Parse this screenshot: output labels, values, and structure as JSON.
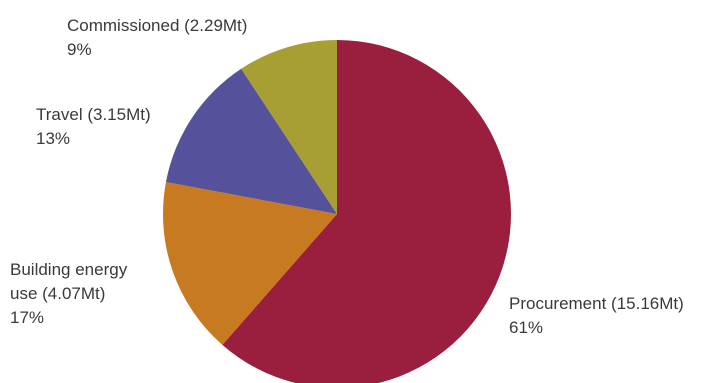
{
  "chart_data": {
    "type": "pie",
    "slices": [
      {
        "name": "Procurement (15.16Mt)",
        "percent_label": "61%",
        "value": 15.16,
        "color": "#9a1f3e"
      },
      {
        "name": "Building energy use (4.07Mt)",
        "name_lines": [
          "Building energy",
          "use (4.07Mt)"
        ],
        "percent_label": "17%",
        "value": 4.07,
        "color": "#c77a20"
      },
      {
        "name": "Travel (3.15Mt)",
        "percent_label": "13%",
        "value": 3.15,
        "color": "#55529b"
      },
      {
        "name": "Commissioned (2.29Mt)",
        "percent_label": "9%",
        "value": 2.29,
        "color": "#a89f34"
      }
    ]
  }
}
